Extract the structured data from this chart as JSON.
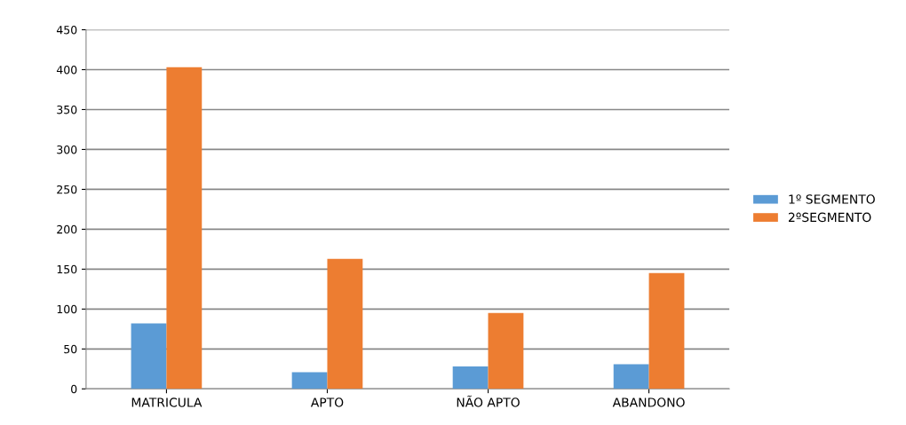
{
  "chart_data": {
    "type": "bar",
    "categories": [
      "MATRICULA",
      "APTO",
      "NÃO APTO",
      "ABANDONO"
    ],
    "series": [
      {
        "name": "1º SEGMENTO",
        "color": "#5b9bd5",
        "values": [
          82,
          21,
          28,
          31
        ]
      },
      {
        "name": "2ºSEGMENTO",
        "color": "#ed7d31",
        "values": [
          403,
          163,
          95,
          145
        ]
      }
    ],
    "ylim": [
      0,
      450
    ],
    "yticks": [
      0,
      50,
      100,
      150,
      200,
      250,
      300,
      350,
      400,
      450
    ],
    "grid": "y",
    "legend": "right"
  }
}
